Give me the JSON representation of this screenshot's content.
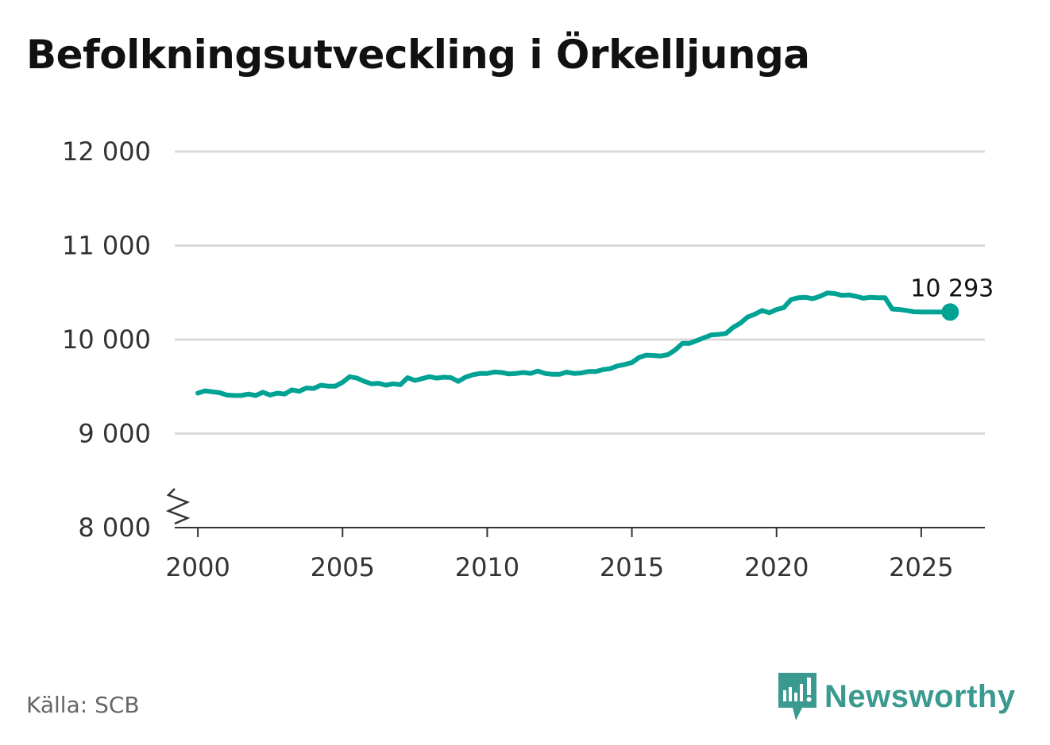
{
  "title": "Befolkningsutveckling i Örkelljunga",
  "source": "Källa: SCB",
  "brand": {
    "name": "Newsworthy",
    "color": "#3a9a8f",
    "logo_icon": "bar-chart-speech-bubble-icon"
  },
  "colors": {
    "line": "#00a294",
    "grid": "#d9d9d9",
    "axis": "#333333",
    "text": "#333333"
  },
  "chart_data": {
    "type": "line",
    "title": "Befolkningsutveckling i Örkelljunga",
    "xlabel": "",
    "ylabel": "",
    "xlim": [
      1999.2,
      2027.2
    ],
    "ylim": [
      8000,
      12000
    ],
    "y_axis_break": true,
    "grid": "horizontal",
    "y_ticks": [
      8000,
      9000,
      10000,
      11000,
      12000
    ],
    "y_tick_labels": [
      "8 000",
      "9 000",
      "10 000",
      "11 000",
      "12 000"
    ],
    "x_ticks": [
      2000,
      2005,
      2010,
      2015,
      2020,
      2025
    ],
    "x_tick_labels": [
      "2000",
      "2005",
      "2010",
      "2015",
      "2020",
      "2025"
    ],
    "end_label": "10 293",
    "series": [
      {
        "name": "Befolkning",
        "x": [
          2000.0,
          2000.25,
          2000.5,
          2000.75,
          2001.0,
          2001.25,
          2001.5,
          2001.75,
          2002.0,
          2002.25,
          2002.5,
          2002.75,
          2003.0,
          2003.25,
          2003.5,
          2003.75,
          2004.0,
          2004.25,
          2004.5,
          2004.75,
          2005.0,
          2005.25,
          2005.5,
          2005.75,
          2006.0,
          2006.25,
          2006.5,
          2006.75,
          2007.0,
          2007.25,
          2007.5,
          2007.75,
          2008.0,
          2008.25,
          2008.5,
          2008.75,
          2009.0,
          2009.25,
          2009.5,
          2009.75,
          2010.0,
          2010.25,
          2010.5,
          2010.75,
          2011.0,
          2011.25,
          2011.5,
          2011.75,
          2012.0,
          2012.25,
          2012.5,
          2012.75,
          2013.0,
          2013.25,
          2013.5,
          2013.75,
          2014.0,
          2014.25,
          2014.5,
          2014.75,
          2015.0,
          2015.25,
          2015.5,
          2015.75,
          2016.0,
          2016.25,
          2016.5,
          2016.75,
          2017.0,
          2017.25,
          2017.5,
          2017.75,
          2018.0,
          2018.25,
          2018.5,
          2018.75,
          2019.0,
          2019.25,
          2019.5,
          2019.75,
          2020.0,
          2020.25,
          2020.5,
          2020.75,
          2021.0,
          2021.25,
          2021.5,
          2021.75,
          2022.0,
          2022.25,
          2022.5,
          2022.75,
          2023.0,
          2023.25,
          2023.5,
          2023.75,
          2024.0,
          2024.25,
          2024.5,
          2024.75,
          2025.0,
          2025.25,
          2025.5,
          2025.75,
          2026.0
        ],
        "values": [
          9430,
          9455,
          9445,
          9435,
          9410,
          9405,
          9405,
          9420,
          9405,
          9440,
          9410,
          9430,
          9420,
          9465,
          9450,
          9485,
          9480,
          9515,
          9505,
          9505,
          9545,
          9605,
          9590,
          9555,
          9530,
          9535,
          9515,
          9530,
          9520,
          9595,
          9565,
          9585,
          9605,
          9590,
          9600,
          9595,
          9555,
          9600,
          9625,
          9640,
          9640,
          9655,
          9650,
          9635,
          9640,
          9650,
          9640,
          9665,
          9640,
          9630,
          9630,
          9655,
          9640,
          9645,
          9660,
          9660,
          9680,
          9690,
          9720,
          9735,
          9755,
          9810,
          9835,
          9830,
          9825,
          9840,
          9890,
          9960,
          9960,
          9990,
          10020,
          10050,
          10055,
          10065,
          10130,
          10175,
          10240,
          10270,
          10310,
          10285,
          10320,
          10340,
          10425,
          10445,
          10450,
          10435,
          10460,
          10495,
          10490,
          10470,
          10475,
          10460,
          10440,
          10450,
          10445,
          10445,
          10325,
          10320,
          10310,
          10295,
          10293,
          10293,
          10293,
          10293,
          10293
        ]
      }
    ]
  }
}
